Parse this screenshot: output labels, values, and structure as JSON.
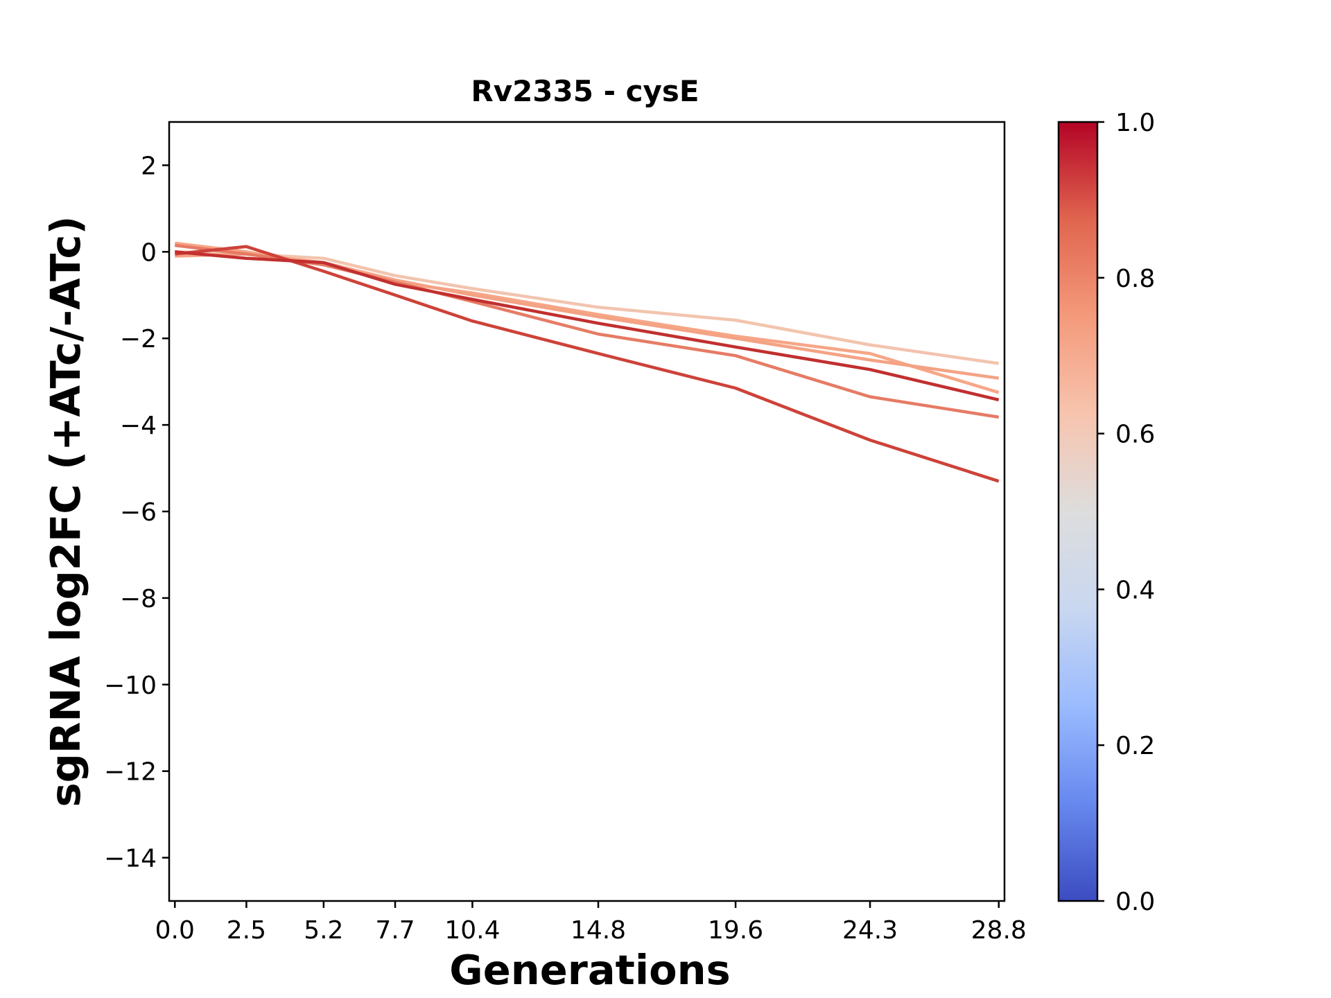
{
  "chart_data": {
    "type": "line",
    "title": "Rv2335 - cysE",
    "xlabel": "Generations",
    "ylabel": "sgRNA log2FC (+ATc/-ATc)",
    "x": [
      0.0,
      2.5,
      5.2,
      7.7,
      10.4,
      14.8,
      19.6,
      24.3,
      28.8
    ],
    "x_tick_labels": [
      "0.0",
      "2.5",
      "5.2",
      "7.7",
      "10.4",
      "14.8",
      "19.6",
      "24.3",
      "28.8"
    ],
    "xlim": [
      -0.2,
      29.0
    ],
    "ylim": [
      -15,
      3
    ],
    "y_ticks": [
      2,
      0,
      -2,
      -4,
      -6,
      -8,
      -10,
      -12,
      -14
    ],
    "y_tick_labels": [
      "2",
      "0",
      "−2",
      "−4",
      "−6",
      "−8",
      "−10",
      "−12",
      "−14"
    ],
    "grid": false,
    "series": [
      {
        "color": "#f2c4ae",
        "colorbar_value": 0.62,
        "values": [
          0.0,
          -0.05,
          -0.15,
          -0.55,
          -0.85,
          -1.28,
          -1.58,
          -2.15,
          -2.58
        ]
      },
      {
        "color": "#f6a686",
        "colorbar_value": 0.7,
        "values": [
          0.2,
          0.0,
          -0.3,
          -0.7,
          -0.95,
          -1.45,
          -1.95,
          -2.35,
          -3.25
        ]
      },
      {
        "color": "#f4a284",
        "colorbar_value": 0.72,
        "values": [
          -0.1,
          -0.05,
          -0.25,
          -0.65,
          -1.0,
          -1.5,
          -2.0,
          -2.5,
          -2.92
        ]
      },
      {
        "color": "#e67b65",
        "colorbar_value": 0.82,
        "values": [
          0.15,
          -0.05,
          -0.3,
          -0.7,
          -1.15,
          -1.9,
          -2.4,
          -3.35,
          -3.82
        ]
      },
      {
        "color": "#cd4239",
        "colorbar_value": 0.93,
        "values": [
          -0.05,
          0.12,
          -0.45,
          -1.0,
          -1.6,
          -2.35,
          -3.15,
          -4.35,
          -5.3
        ]
      },
      {
        "color": "#c22f2f",
        "colorbar_value": 0.96,
        "values": [
          0.0,
          -0.15,
          -0.25,
          -0.75,
          -1.1,
          -1.65,
          -2.2,
          -2.72,
          -3.42
        ]
      }
    ],
    "colorbar": {
      "range": [
        0.0,
        1.0
      ],
      "tick_values": [
        0.0,
        0.2,
        0.4,
        0.6,
        0.8,
        1.0
      ],
      "tick_labels": [
        "0.0",
        "0.2",
        "0.4",
        "0.6",
        "0.8",
        "1.0"
      ],
      "colormap": "coolwarm",
      "stops": [
        "#3b4cc0",
        "#6788ee",
        "#9abbff",
        "#c9d7f0",
        "#dddddd",
        "#f7c4ae",
        "#f49a7b",
        "#e0654f",
        "#b40426"
      ]
    }
  }
}
